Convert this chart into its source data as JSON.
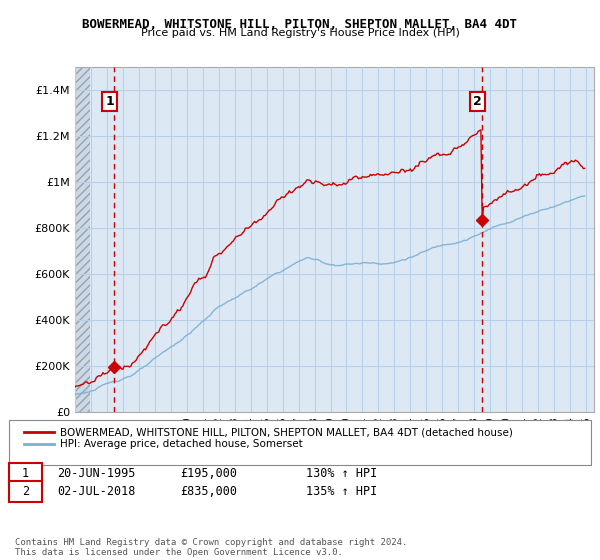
{
  "title1": "BOWERMEAD, WHITSTONE HILL, PILTON, SHEPTON MALLET, BA4 4DT",
  "title2": "Price paid vs. HM Land Registry's House Price Index (HPI)",
  "ylim": [
    0,
    1500000
  ],
  "yticks": [
    0,
    200000,
    400000,
    600000,
    800000,
    1000000,
    1200000,
    1400000
  ],
  "ytick_labels": [
    "£0",
    "£200K",
    "£400K",
    "£600K",
    "£800K",
    "£1M",
    "£1.2M",
    "£1.4M"
  ],
  "xlim_start": 1993.0,
  "xlim_end": 2025.5,
  "sale1_x": 1995.47,
  "sale1_y": 195000,
  "sale2_x": 2018.5,
  "sale2_y": 835000,
  "sale_color": "#cc0000",
  "hpi_color": "#7bafd4",
  "bg_color": "#dce9f5",
  "hatch_end_year": 1993.92,
  "label1": "BOWERMEAD, WHITSTONE HILL, PILTON, SHEPTON MALLET, BA4 4DT (detached house)",
  "label2": "HPI: Average price, detached house, Somerset",
  "table_row1": [
    "1",
    "20-JUN-1995",
    "£195,000",
    "130% ↑ HPI"
  ],
  "table_row2": [
    "2",
    "02-JUL-2018",
    "£835,000",
    "135% ↑ HPI"
  ],
  "footer": "Contains HM Land Registry data © Crown copyright and database right 2024.\nThis data is licensed under the Open Government Licence v3.0.",
  "grid_color": "#b8cfe8"
}
